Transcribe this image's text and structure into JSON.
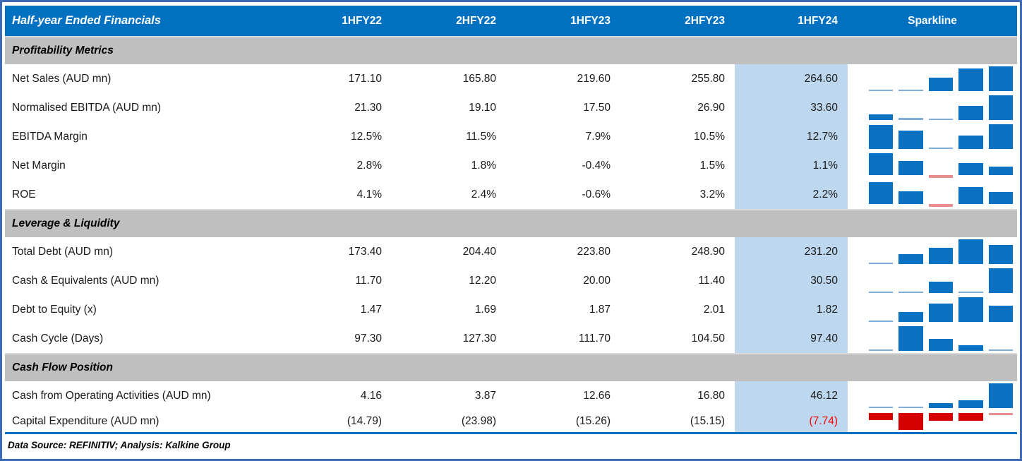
{
  "colors": {
    "header_bg": "#0070C0",
    "header_text": "#FFFFFF",
    "section_bg": "#BFBFBF",
    "highlight_col_bg": "#BDD7EE",
    "outer_border": "#3E69B5",
    "spark_pos": "#0A72C2",
    "spark_pos_thin": "#7EADDB",
    "spark_neg": "#D40000",
    "spark_neg_thin": "#E98C8C",
    "negative_text": "#FF0000",
    "footer_rule": "#0070C0"
  },
  "header": {
    "title": "Half-year Ended Financials",
    "columns": [
      "1HFY22",
      "2HFY22",
      "1HFY23",
      "2HFY23",
      "1HFY24"
    ],
    "sparkline_label": "Sparkline",
    "highlight_column": "1HFY24"
  },
  "sections": [
    {
      "title": "Profitability Metrics",
      "rows": [
        {
          "label": "Net Sales (AUD mn)",
          "cells": [
            "171.10",
            "165.80",
            "219.60",
            "255.80",
            "264.60"
          ],
          "spark": [
            171.1,
            165.8,
            219.6,
            255.8,
            264.6
          ],
          "red_indices": []
        },
        {
          "label": "Normalised EBITDA (AUD mn)",
          "cells": [
            "21.30",
            "19.10",
            "17.50",
            "26.90",
            "33.60"
          ],
          "spark": [
            21.3,
            19.1,
            17.5,
            26.9,
            33.6
          ],
          "red_indices": []
        },
        {
          "label": "EBITDA Margin",
          "cells": [
            "12.5%",
            "11.5%",
            "7.9%",
            "10.5%",
            "12.7%"
          ],
          "spark": [
            12.5,
            11.5,
            7.9,
            10.5,
            12.7
          ],
          "red_indices": []
        },
        {
          "label": "Net Margin",
          "cells": [
            "2.8%",
            "1.8%",
            "-0.4%",
            "1.5%",
            "1.1%"
          ],
          "spark": [
            2.8,
            1.8,
            -0.4,
            1.5,
            1.1
          ],
          "red_indices": []
        },
        {
          "label": "ROE",
          "cells": [
            "4.1%",
            "2.4%",
            "-0.6%",
            "3.2%",
            "2.2%"
          ],
          "spark": [
            4.1,
            2.4,
            -0.6,
            3.2,
            2.2
          ],
          "red_indices": []
        }
      ]
    },
    {
      "title": "Leverage & Liquidity",
      "rows": [
        {
          "label": "Total Debt (AUD mn)",
          "cells": [
            "173.40",
            "204.40",
            "223.80",
            "248.90",
            "231.20"
          ],
          "spark": [
            173.4,
            204.4,
            223.8,
            248.9,
            231.2
          ],
          "red_indices": []
        },
        {
          "label": "Cash & Equivalents (AUD mn)",
          "cells": [
            "11.70",
            "12.20",
            "20.00",
            "11.40",
            "30.50"
          ],
          "spark": [
            11.7,
            12.2,
            20.0,
            11.4,
            30.5
          ],
          "red_indices": []
        },
        {
          "label": "Debt to Equity (x)",
          "cells": [
            "1.47",
            "1.69",
            "1.87",
            "2.01",
            "1.82"
          ],
          "spark": [
            1.47,
            1.69,
            1.87,
            2.01,
            1.82
          ],
          "red_indices": []
        },
        {
          "label": "Cash Cycle (Days)",
          "cells": [
            "97.30",
            "127.30",
            "111.70",
            "104.50",
            "97.40"
          ],
          "spark": [
            97.3,
            127.3,
            111.7,
            104.5,
            97.4
          ],
          "red_indices": []
        }
      ]
    },
    {
      "title": "Cash Flow Position",
      "rows": [
        {
          "label": "Cash from Operating Activities (AUD mn)",
          "cells": [
            "4.16",
            "3.87",
            "12.66",
            "16.80",
            "46.12"
          ],
          "spark": [
            4.16,
            3.87,
            12.66,
            16.8,
            46.12
          ],
          "red_indices": []
        },
        {
          "label": "Capital Expenditure (AUD mn)",
          "cells": [
            "(14.79)",
            "(23.98)",
            "(15.26)",
            "(15.15)",
            "(7.74)"
          ],
          "spark": [
            -14.79,
            -23.98,
            -15.26,
            -15.15,
            -7.74
          ],
          "red_indices": [
            4
          ],
          "short": true
        }
      ]
    }
  ],
  "footer": "Data Source: REFINITIV; Analysis: Kalkine Group",
  "chart_data": {
    "type": "table",
    "title": "Half-year Ended Financials",
    "columns": [
      "1HFY22",
      "2HFY22",
      "1HFY23",
      "2HFY23",
      "1HFY24"
    ],
    "highlighted_column": "1HFY24",
    "sections": [
      {
        "name": "Profitability Metrics",
        "rows": [
          {
            "metric": "Net Sales (AUD mn)",
            "values": [
              171.1,
              165.8,
              219.6,
              255.8,
              264.6
            ]
          },
          {
            "metric": "Normalised EBITDA (AUD mn)",
            "values": [
              21.3,
              19.1,
              17.5,
              26.9,
              33.6
            ]
          },
          {
            "metric": "EBITDA Margin (%)",
            "values": [
              12.5,
              11.5,
              7.9,
              10.5,
              12.7
            ]
          },
          {
            "metric": "Net Margin (%)",
            "values": [
              2.8,
              1.8,
              -0.4,
              1.5,
              1.1
            ]
          },
          {
            "metric": "ROE (%)",
            "values": [
              4.1,
              2.4,
              -0.6,
              3.2,
              2.2
            ]
          }
        ]
      },
      {
        "name": "Leverage & Liquidity",
        "rows": [
          {
            "metric": "Total Debt (AUD mn)",
            "values": [
              173.4,
              204.4,
              223.8,
              248.9,
              231.2
            ]
          },
          {
            "metric": "Cash & Equivalents (AUD mn)",
            "values": [
              11.7,
              12.2,
              20.0,
              11.4,
              30.5
            ]
          },
          {
            "metric": "Debt to Equity (x)",
            "values": [
              1.47,
              1.69,
              1.87,
              2.01,
              1.82
            ]
          },
          {
            "metric": "Cash Cycle (Days)",
            "values": [
              97.3,
              127.3,
              111.7,
              104.5,
              97.4
            ]
          }
        ]
      },
      {
        "name": "Cash Flow Position",
        "rows": [
          {
            "metric": "Cash from Operating Activities (AUD mn)",
            "values": [
              4.16,
              3.87,
              12.66,
              16.8,
              46.12
            ]
          },
          {
            "metric": "Capital Expenditure (AUD mn)",
            "values": [
              -14.79,
              -23.98,
              -15.26,
              -15.15,
              -7.74
            ]
          }
        ]
      }
    ],
    "sparkline": {
      "type": "bar",
      "note": "Each row has a 5-bar mini column chart of its period values; bars scale row-relative, positive bars blue, negative bars red; rows with mixed signs use a zero baseline, all-negative rows hang from the top.",
      "legend_position": "none",
      "grid": false
    },
    "source": "Data Source: REFINITIV; Analysis: Kalkine Group"
  }
}
